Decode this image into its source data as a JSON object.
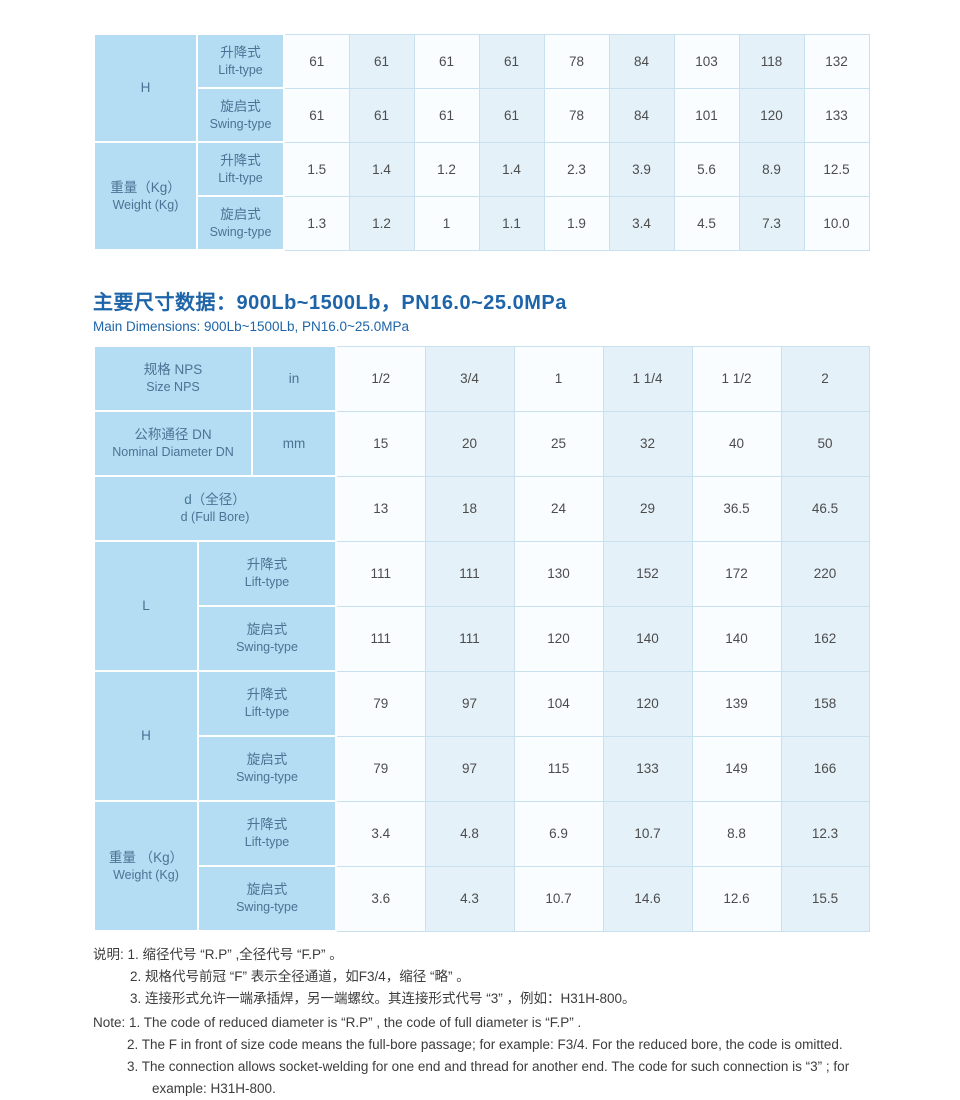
{
  "colors": {
    "title_blue": "#1e64a8",
    "label_cell_bg": "#b4dcf2",
    "label_text": "#4a7495",
    "data_cell_light": "#fafdff",
    "data_cell_tint": "#e5f1f9",
    "table_border": "#c9e1ef",
    "data_text": "#4c4c4c",
    "note_text": "#3c3c3c"
  },
  "section_title": {
    "zh": "主要尺寸数据：900Lb~1500Lb，PN16.0~25.0MPa",
    "en": "Main Dimensions: 900Lb~1500Lb, PN16.0~25.0MPa"
  },
  "table1": {
    "row_groups": [
      {
        "label_zh": "H",
        "label_en": "",
        "rows": [
          {
            "type_zh": "升降式",
            "type_en": "Lift-type",
            "values": [
              "61",
              "61",
              "61",
              "61",
              "78",
              "84",
              "103",
              "118",
              "132"
            ]
          },
          {
            "type_zh": "旋启式",
            "type_en": "Swing-type",
            "values": [
              "61",
              "61",
              "61",
              "61",
              "78",
              "84",
              "101",
              "120",
              "133"
            ]
          }
        ]
      },
      {
        "label_zh": "重量（Kg）",
        "label_en": "Weight (Kg)",
        "rows": [
          {
            "type_zh": "升降式",
            "type_en": "Lift-type",
            "values": [
              "1.5",
              "1.4",
              "1.2",
              "1.4",
              "2.3",
              "3.9",
              "5.6",
              "8.9",
              "12.5"
            ]
          },
          {
            "type_zh": "旋启式",
            "type_en": "Swing-type",
            "values": [
              "1.3",
              "1.2",
              "1",
              "1.1",
              "1.9",
              "3.4",
              "4.5",
              "7.3",
              "10.0"
            ]
          }
        ]
      }
    ]
  },
  "table2": {
    "header_rows": [
      {
        "label_zh": "规格 NPS",
        "label_en": "Size NPS",
        "unit": "in",
        "values": [
          "1/2",
          "3/4",
          "1",
          "1 1/4",
          "1 1/2",
          "2"
        ]
      },
      {
        "label_zh": "公称通径 DN",
        "label_en": "Nominal Diameter DN",
        "unit": "mm",
        "values": [
          "15",
          "20",
          "25",
          "32",
          "40",
          "50"
        ]
      }
    ],
    "full_span_row": {
      "label_zh": "d（全径）",
      "label_en": "d (Full Bore)",
      "values": [
        "13",
        "18",
        "24",
        "29",
        "36.5",
        "46.5"
      ]
    },
    "row_groups": [
      {
        "label_zh": "L",
        "label_en": "",
        "rows": [
          {
            "type_zh": "升降式",
            "type_en": "Lift-type",
            "values": [
              "111",
              "111",
              "130",
              "152",
              "172",
              "220"
            ]
          },
          {
            "type_zh": "旋启式",
            "type_en": "Swing-type",
            "values": [
              "111",
              "111",
              "120",
              "140",
              "140",
              "162"
            ]
          }
        ]
      },
      {
        "label_zh": "H",
        "label_en": "",
        "rows": [
          {
            "type_zh": "升降式",
            "type_en": "Lift-type",
            "values": [
              "79",
              "97",
              "104",
              "120",
              "139",
              "158"
            ]
          },
          {
            "type_zh": "旋启式",
            "type_en": "Swing-type",
            "values": [
              "79",
              "97",
              "115",
              "133",
              "149",
              "166"
            ]
          }
        ]
      },
      {
        "label_zh": "重量 （Kg）",
        "label_en": "Weight (Kg)",
        "rows": [
          {
            "type_zh": "升降式",
            "type_en": "Lift-type",
            "values": [
              "3.4",
              "4.8",
              "6.9",
              "10.7",
              "8.8",
              "12.3"
            ]
          },
          {
            "type_zh": "旋启式",
            "type_en": "Swing-type",
            "values": [
              "3.6",
              "4.3",
              "10.7",
              "14.6",
              "12.6",
              "15.5"
            ]
          }
        ]
      }
    ]
  },
  "notes": {
    "zh_lines": [
      {
        "text": "说明: 1. 缩径代号 “R.P” ,全径代号 “F.P” 。",
        "indent": 0
      },
      {
        "text": "2. 规格代号前冠 “F” 表示全径通道，如F3/4，缩径 “略” 。",
        "indent": 1
      },
      {
        "text": "3. 连接形式允许一端承插焊，另一端螺纹。其连接形式代号 “3” ，例如：H31H-800。",
        "indent": 1
      }
    ],
    "en_lines": [
      {
        "text": "Note: 1. The code of reduced diameter is  “R.P” , the code of full diameter is  “F.P” .",
        "indent": 0
      },
      {
        "text": "2. The F in front of size code means the full-bore passage; for example: F3/4. For the reduced bore, the code is omitted.",
        "indent": 1
      },
      {
        "text": "3. The connection allows socket-welding for one end and thread for another end. The code for such connection is  “3” ; for",
        "indent": 1
      },
      {
        "text": "example: H31H-800.",
        "indent": 2
      }
    ]
  }
}
